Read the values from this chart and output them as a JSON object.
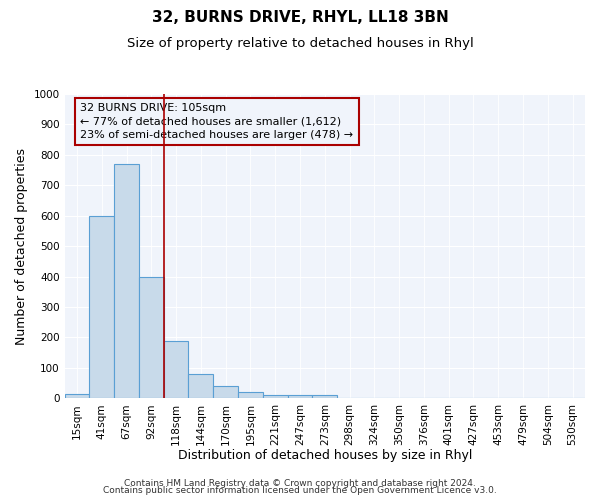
{
  "title": "32, BURNS DRIVE, RHYL, LL18 3BN",
  "subtitle": "Size of property relative to detached houses in Rhyl",
  "xlabel": "Distribution of detached houses by size in Rhyl",
  "ylabel": "Number of detached properties",
  "bar_labels": [
    "15sqm",
    "41sqm",
    "67sqm",
    "92sqm",
    "118sqm",
    "144sqm",
    "170sqm",
    "195sqm",
    "221sqm",
    "247sqm",
    "273sqm",
    "298sqm",
    "324sqm",
    "350sqm",
    "376sqm",
    "401sqm",
    "427sqm",
    "453sqm",
    "479sqm",
    "504sqm",
    "530sqm"
  ],
  "bar_values": [
    15,
    600,
    770,
    400,
    190,
    80,
    40,
    20,
    10,
    10,
    10,
    0,
    0,
    0,
    0,
    0,
    0,
    0,
    0,
    0,
    0
  ],
  "bar_color": "#c8daea",
  "bar_edge_color": "#5a9fd4",
  "bar_linewidth": 0.8,
  "ylim": [
    0,
    1000
  ],
  "yticks": [
    0,
    100,
    200,
    300,
    400,
    500,
    600,
    700,
    800,
    900,
    1000
  ],
  "red_line_x": 3.5,
  "annotation_text": "32 BURNS DRIVE: 105sqm\n← 77% of detached houses are smaller (1,612)\n23% of semi-detached houses are larger (478) →",
  "footer_line1": "Contains HM Land Registry data © Crown copyright and database right 2024.",
  "footer_line2": "Contains public sector information licensed under the Open Government Licence v3.0.",
  "plot_bg_color": "#f0f4fb",
  "fig_bg_color": "#ffffff",
  "grid_color": "#ffffff",
  "title_fontsize": 11,
  "subtitle_fontsize": 9.5,
  "axis_label_fontsize": 9,
  "tick_fontsize": 7.5,
  "annotation_fontsize": 8,
  "footer_fontsize": 6.5
}
